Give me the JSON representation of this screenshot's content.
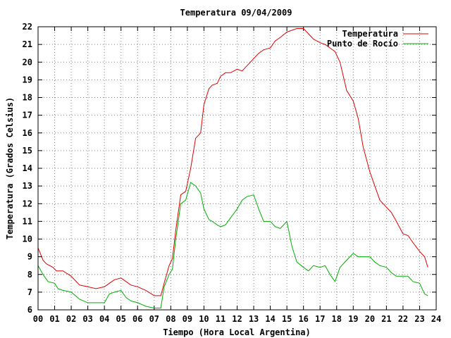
{
  "chart_data": {
    "type": "line",
    "title": "Temperatura 09/04/2009",
    "xlabel": "Tiempo (Hora Local Argentina)",
    "ylabel": "Temperatura (Grados Celsius)",
    "xlim": [
      0,
      24
    ],
    "ylim": [
      6,
      22
    ],
    "grid": true,
    "legend_position": "top-right",
    "x_tick_labels": [
      "00",
      "01",
      "02",
      "03",
      "04",
      "05",
      "06",
      "07",
      "08",
      "09",
      "10",
      "11",
      "12",
      "13",
      "14",
      "15",
      "16",
      "17",
      "18",
      "19",
      "20",
      "21",
      "22",
      "23",
      "24"
    ],
    "y_tick_labels": [
      "6",
      "7",
      "8",
      "9",
      "10",
      "11",
      "12",
      "13",
      "14",
      "15",
      "16",
      "17",
      "18",
      "19",
      "20",
      "21",
      "22"
    ],
    "series": [
      {
        "name": "Temperatura",
        "color": "#e00000",
        "x": [
          0.0,
          0.3,
          0.5,
          0.9,
          1.1,
          1.5,
          2.0,
          2.5,
          3.0,
          3.5,
          4.0,
          4.3,
          4.6,
          5.0,
          5.3,
          5.6,
          6.0,
          6.5,
          7.0,
          7.4,
          7.6,
          7.9,
          8.1,
          8.3,
          8.6,
          8.9,
          9.2,
          9.5,
          9.8,
          10.0,
          10.3,
          10.5,
          10.8,
          11.0,
          11.3,
          11.6,
          12.0,
          12.3,
          12.6,
          13.0,
          13.3,
          13.6,
          14.0,
          14.3,
          14.6,
          15.0,
          15.3,
          15.6,
          16.0,
          16.3,
          16.6,
          17.0,
          17.3,
          17.6,
          17.9,
          18.2,
          18.6,
          19.0,
          19.3,
          19.6,
          20.0,
          20.3,
          20.6,
          21.0,
          21.3,
          21.6,
          22.0,
          22.3,
          22.6,
          23.0,
          23.3,
          23.5
        ],
        "values": [
          9.5,
          8.8,
          8.6,
          8.4,
          8.2,
          8.2,
          7.9,
          7.4,
          7.3,
          7.2,
          7.3,
          7.5,
          7.7,
          7.8,
          7.6,
          7.4,
          7.3,
          7.1,
          6.8,
          6.8,
          7.5,
          8.5,
          8.9,
          10.5,
          12.5,
          12.7,
          14.0,
          15.7,
          16.0,
          17.6,
          18.5,
          18.7,
          18.8,
          19.2,
          19.4,
          19.4,
          19.6,
          19.5,
          19.8,
          20.2,
          20.5,
          20.7,
          20.8,
          21.2,
          21.4,
          21.7,
          21.8,
          21.9,
          21.9,
          21.6,
          21.3,
          21.1,
          21.0,
          20.8,
          20.6,
          20.0,
          18.4,
          17.8,
          16.8,
          15.2,
          13.8,
          13.0,
          12.2,
          11.8,
          11.5,
          11.0,
          10.3,
          10.2,
          9.8,
          9.3,
          9.0,
          8.4
        ]
      },
      {
        "name": "Punto de Rocío",
        "color": "#00b000",
        "x": [
          0.0,
          0.3,
          0.6,
          1.0,
          1.2,
          1.5,
          2.0,
          2.5,
          3.0,
          3.5,
          4.0,
          4.3,
          4.6,
          5.0,
          5.3,
          5.6,
          6.0,
          6.5,
          7.0,
          7.4,
          7.6,
          7.9,
          8.1,
          8.3,
          8.6,
          8.9,
          9.2,
          9.5,
          9.8,
          10.0,
          10.3,
          10.5,
          10.8,
          11.0,
          11.3,
          11.6,
          12.0,
          12.3,
          12.6,
          13.0,
          13.3,
          13.6,
          14.0,
          14.3,
          14.6,
          15.0,
          15.3,
          15.6,
          16.0,
          16.3,
          16.6,
          17.0,
          17.3,
          17.6,
          17.9,
          18.2,
          18.6,
          19.0,
          19.3,
          19.6,
          20.0,
          20.3,
          20.6,
          21.0,
          21.3,
          21.6,
          22.0,
          22.3,
          22.6,
          23.0,
          23.3,
          23.5
        ],
        "values": [
          8.5,
          8.0,
          7.6,
          7.5,
          7.2,
          7.1,
          7.0,
          6.6,
          6.4,
          6.4,
          6.4,
          6.9,
          7.0,
          7.1,
          6.7,
          6.5,
          6.4,
          6.2,
          6.1,
          6.1,
          7.3,
          8.0,
          8.3,
          10.0,
          12.0,
          12.2,
          13.2,
          13.0,
          12.6,
          11.7,
          11.1,
          11.0,
          10.8,
          10.7,
          10.8,
          11.2,
          11.7,
          12.2,
          12.4,
          12.5,
          11.7,
          11.0,
          11.0,
          10.7,
          10.6,
          11.0,
          9.6,
          8.7,
          8.4,
          8.2,
          8.5,
          8.4,
          8.5,
          8.0,
          7.6,
          8.4,
          8.8,
          9.2,
          9.0,
          9.0,
          9.0,
          8.7,
          8.5,
          8.4,
          8.1,
          7.9,
          7.9,
          7.9,
          7.6,
          7.5,
          6.9,
          6.8
        ]
      }
    ]
  }
}
